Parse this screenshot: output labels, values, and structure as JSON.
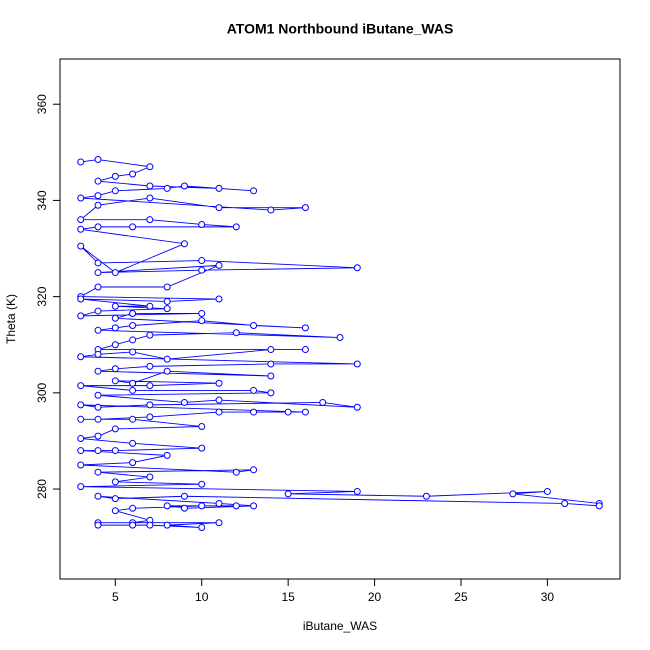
{
  "chart_data": {
    "type": "line",
    "title": "ATOM1 Northbound iButane_WAS",
    "x_label": "iButane_WAS",
    "y_label": "Theta (K)",
    "color": "#0000ff",
    "markers": true,
    "xlim": [
      1.8,
      34.2
    ],
    "ylim": [
      261.3,
      369.4
    ],
    "xticks": [
      5,
      10,
      15,
      20,
      25,
      30
    ],
    "yticks": [
      280,
      300,
      320,
      340,
      360
    ],
    "grid": false,
    "x": [
      3,
      4,
      7,
      6,
      5,
      4,
      7,
      11,
      13,
      9,
      8,
      5,
      4,
      3,
      14,
      16,
      11,
      7,
      4,
      3,
      7,
      10,
      12,
      6,
      4,
      3,
      9,
      5,
      3,
      4,
      10,
      19,
      10,
      4,
      11,
      8,
      4,
      3,
      11,
      8,
      3,
      7,
      5,
      8,
      4,
      3,
      10,
      6,
      5,
      16,
      13,
      10,
      6,
      5,
      4,
      18,
      12,
      7,
      6,
      5,
      4,
      16,
      14,
      8,
      6,
      4,
      3,
      19,
      14,
      7,
      5,
      4,
      14,
      8,
      6,
      5,
      11,
      7,
      3,
      6,
      13,
      14,
      4,
      9,
      11,
      19,
      17,
      7,
      4,
      3,
      16,
      15,
      13,
      11,
      7,
      4,
      3,
      6,
      10,
      5,
      4,
      3,
      6,
      10,
      5,
      4,
      3,
      8,
      6,
      3,
      12,
      13,
      4,
      7,
      5,
      10,
      3,
      19,
      15,
      23,
      30,
      28,
      33,
      33,
      31,
      9,
      5,
      4,
      11,
      13,
      9,
      8,
      12,
      10,
      6,
      5,
      7,
      6,
      4,
      11,
      8,
      10,
      7,
      6,
      4
    ],
    "values": [
      348,
      348.5,
      347,
      345.5,
      345,
      344,
      343,
      342.5,
      342,
      343,
      342.5,
      342,
      341,
      340.5,
      338,
      338.5,
      338.5,
      340.5,
      339,
      336,
      336,
      335,
      334.5,
      334.5,
      334.5,
      334,
      331,
      325,
      330.5,
      327,
      327.5,
      326,
      325.5,
      325,
      326.5,
      322,
      322,
      320,
      319.5,
      319,
      319.5,
      318,
      318,
      317.5,
      317,
      316,
      316.5,
      316.5,
      315.5,
      313.5,
      314,
      315,
      314,
      313.5,
      313,
      311.5,
      312.5,
      312,
      311,
      310,
      309,
      309,
      309,
      307,
      308.5,
      308,
      307.5,
      306,
      306,
      305.5,
      305,
      304.5,
      303.5,
      304.5,
      302,
      302.5,
      302,
      301.5,
      301.5,
      300.5,
      300.5,
      300,
      299.5,
      298,
      298.5,
      297,
      298,
      297.5,
      297,
      297.5,
      296,
      296,
      296,
      296,
      295,
      294.5,
      294.5,
      294.5,
      293,
      292.5,
      291,
      290.5,
      289.5,
      288.5,
      288,
      288,
      288,
      287,
      285.5,
      285,
      283.5,
      284,
      283.5,
      282.5,
      281.5,
      281,
      280.5,
      279.5,
      279,
      278.5,
      279.5,
      279,
      277,
      276.5,
      277,
      278.5,
      278,
      278.5,
      277,
      276.5,
      276,
      276.5,
      276.5,
      276.5,
      276,
      275.5,
      273.5,
      273,
      273,
      273,
      272.5,
      272,
      272.5,
      272.5,
      272.5
    ]
  }
}
